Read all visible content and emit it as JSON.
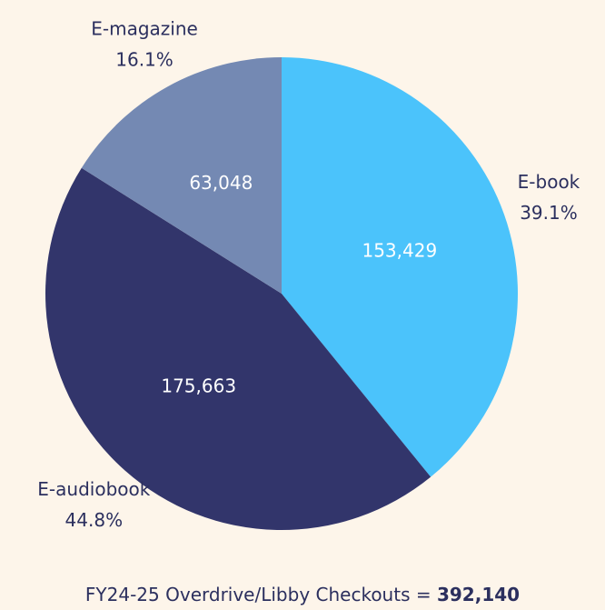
{
  "chart_data": {
    "type": "pie",
    "title": "FY24-25 Overdrive/Libby Checkouts =",
    "total_label": "392,140",
    "categories": [
      "E-book",
      "E-audiobook",
      "E-magazine"
    ],
    "values": [
      153429,
      175663,
      63048
    ],
    "value_labels": [
      "153,429",
      "175,663",
      "63,048"
    ],
    "percent_labels": [
      "39.1%",
      "44.8%",
      "16.1%"
    ],
    "colors": [
      "#4bc3fb",
      "#32356b",
      "#7489b3"
    ]
  }
}
